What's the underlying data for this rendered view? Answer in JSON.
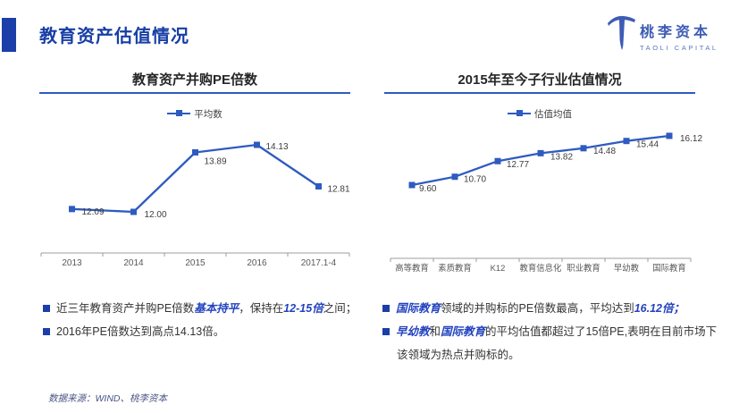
{
  "page": {
    "title": "教育资产估值情况",
    "footer": "数据来源：WIND、桃李资本"
  },
  "logo": {
    "cn": "桃李资本",
    "en": "TAOLI CAPITAL"
  },
  "colors": {
    "title_blue": "#173EA5",
    "chart_line": "#2E5BC0",
    "emphasis_blue": "#2343BF",
    "accent_square": "#1B3EA8",
    "axis_gray": "#9E9E9E",
    "data_label": "#3D3D3D",
    "tick_label": "#595959"
  },
  "chart_data": [
    {
      "type": "line",
      "title": "教育资产并购PE倍数",
      "legend": [
        "平均数"
      ],
      "legend_position": "top",
      "categories": [
        "2013",
        "2014",
        "2015",
        "2016",
        "2017.1-4"
      ],
      "values": [
        12.09,
        12.0,
        13.89,
        14.13,
        12.81
      ],
      "xlabel": "",
      "ylabel": "",
      "ylim": [
        11.5,
        14.8
      ],
      "grid": false,
      "marker": "square",
      "value_labels": true
    },
    {
      "type": "line",
      "title": "2015年至今子行业估值情况",
      "legend": [
        "估值均值"
      ],
      "legend_position": "top",
      "categories": [
        "高等教育",
        "素质教育",
        "K12",
        "教育信息化",
        "职业教育",
        "早幼教",
        "国际教育"
      ],
      "values": [
        9.6,
        10.7,
        12.77,
        13.82,
        14.48,
        15.44,
        16.12
      ],
      "xlabel": "",
      "ylabel": "",
      "ylim": [
        8.5,
        17.0
      ],
      "grid": false,
      "marker": "square",
      "value_labels": true
    }
  ],
  "bullets": {
    "left": [
      {
        "segments": [
          {
            "t": "近三年教育资产并购PE倍数"
          },
          {
            "t": "基本持平",
            "em": true
          },
          {
            "t": "，保持在"
          },
          {
            "t": "12-15倍",
            "em": true
          },
          {
            "t": "之间；"
          }
        ]
      },
      {
        "segments": [
          {
            "t": "2016年PE倍数达到高点14.13倍。"
          }
        ]
      }
    ],
    "right": [
      {
        "segments": [
          {
            "t": "国际教育",
            "em": true
          },
          {
            "t": "领域的并购标的PE倍数最高，平均达到"
          },
          {
            "t": "16.12倍；",
            "em": true
          }
        ]
      },
      {
        "segments": [
          {
            "t": "早幼教",
            "em": true
          },
          {
            "t": "和"
          },
          {
            "t": "国际教育",
            "em": true
          },
          {
            "t": "的平均估值都超过了15倍PE,表明在目前市场下该领域为热点并购标的。"
          }
        ]
      }
    ]
  }
}
